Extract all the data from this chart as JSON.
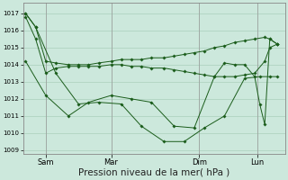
{
  "bg_color": "#cce8dc",
  "grid_color": "#aacfbc",
  "line_color": "#1a5c1a",
  "xlabel": "Pression niveau de la mer( hPa )",
  "xlabel_fontsize": 7.5,
  "ylim": [
    1008.8,
    1017.6
  ],
  "yticks": [
    1009,
    1010,
    1011,
    1012,
    1013,
    1014,
    1015,
    1016,
    1017
  ],
  "xtick_labels": [
    "Sam",
    "Mar",
    "Dim",
    "Lun"
  ],
  "xtick_positions": [
    0.08,
    0.34,
    0.69,
    0.92
  ],
  "vline_positions": [
    0.08,
    0.34,
    0.69,
    0.92
  ],
  "series1_x": [
    0.0,
    0.04,
    0.08,
    0.12,
    0.17,
    0.21,
    0.25,
    0.29,
    0.34,
    0.38,
    0.42,
    0.46,
    0.5,
    0.55,
    0.59,
    0.63,
    0.67,
    0.71,
    0.75,
    0.79,
    0.83,
    0.87,
    0.91,
    0.95,
    0.97,
    1.0
  ],
  "series1_y": [
    1017.0,
    1016.2,
    1014.2,
    1014.1,
    1014.0,
    1014.0,
    1014.0,
    1014.1,
    1014.2,
    1014.3,
    1014.3,
    1014.3,
    1014.4,
    1014.4,
    1014.5,
    1014.6,
    1014.7,
    1014.8,
    1015.0,
    1015.1,
    1015.3,
    1015.4,
    1015.5,
    1015.6,
    1015.5,
    1015.2
  ],
  "series2_x": [
    0.0,
    0.04,
    0.08,
    0.12,
    0.17,
    0.21,
    0.25,
    0.29,
    0.34,
    0.38,
    0.42,
    0.46,
    0.5,
    0.55,
    0.59,
    0.63,
    0.67,
    0.71,
    0.75,
    0.79,
    0.83,
    0.87,
    0.91,
    0.95,
    0.97,
    1.0
  ],
  "series2_y": [
    1016.8,
    1015.5,
    1013.5,
    1013.8,
    1013.9,
    1013.9,
    1013.9,
    1013.9,
    1014.0,
    1014.0,
    1013.9,
    1013.9,
    1013.8,
    1013.8,
    1013.7,
    1013.6,
    1013.5,
    1013.4,
    1013.3,
    1013.3,
    1013.3,
    1013.4,
    1013.5,
    1014.2,
    1015.0,
    1015.2
  ],
  "series3_x": [
    0.0,
    0.04,
    0.12,
    0.21,
    0.29,
    0.38,
    0.46,
    0.55,
    0.63,
    0.71,
    0.79,
    0.87,
    0.93,
    0.97,
    1.0
  ],
  "series3_y": [
    1017.0,
    1016.2,
    1013.5,
    1011.7,
    1011.8,
    1011.7,
    1010.4,
    1009.5,
    1009.5,
    1010.3,
    1011.0,
    1013.2,
    1013.3,
    1013.3,
    1013.3
  ],
  "series4_x": [
    0.0,
    0.08,
    0.17,
    0.25,
    0.34,
    0.42,
    0.5,
    0.59,
    0.67,
    0.75,
    0.79,
    0.83,
    0.87,
    0.91,
    0.93,
    0.95,
    0.97,
    1.0
  ],
  "series4_y": [
    1014.2,
    1012.2,
    1011.0,
    1011.8,
    1012.2,
    1012.0,
    1011.8,
    1010.4,
    1010.3,
    1013.3,
    1014.1,
    1014.0,
    1014.0,
    1013.3,
    1011.7,
    1010.5,
    1015.5,
    1015.2
  ]
}
